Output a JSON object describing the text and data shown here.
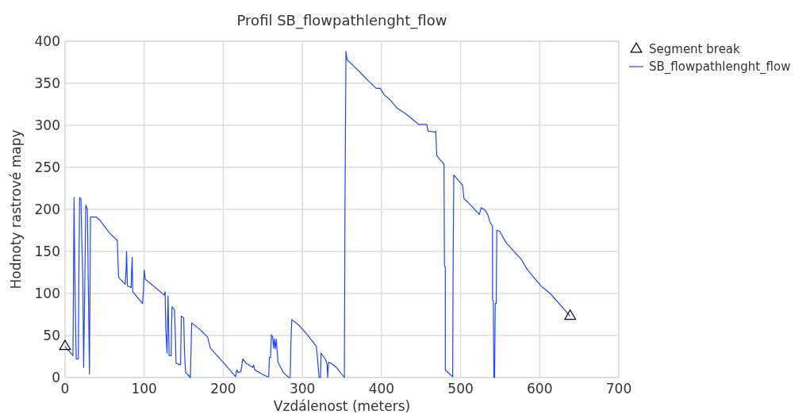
{
  "chart_data": {
    "type": "line",
    "title": "Profil SB_flowpathlenght_flow",
    "xlabel": "Vzdálenost (meters)",
    "ylabel": "Hodnoty rastrové mapy",
    "xlim": [
      0,
      700
    ],
    "xticks": [
      0,
      100,
      200,
      300,
      400,
      500,
      600,
      700
    ],
    "ylim": [
      0,
      400
    ],
    "yticks": [
      0,
      50,
      100,
      150,
      200,
      250,
      300,
      350,
      400
    ],
    "grid": true,
    "legend": "top right",
    "series": [
      {
        "name": "Segment break",
        "type": "scatter",
        "marker": "triangle",
        "color": "#000000",
        "x": [
          0,
          638.5
        ],
        "values": [
          37,
          73
        ]
      },
      {
        "name": "SB_flowpathlenght_flow",
        "marker": "none",
        "line_style": "solid",
        "color": "#1f45fc",
        "x": [
          0,
          10,
          10.7,
          11.4,
          12.4,
          14.1,
          16.8,
          17.4,
          18.4,
          20.1,
          22.4,
          23.5,
          24.8,
          26.2,
          28.2,
          29.5,
          30.8,
          32.2,
          39.3,
          44.3,
          56,
          66.1,
          66.8,
          67.8,
          76.1,
          77.1,
          77.8,
          78.8,
          83.6,
          84,
          84.9,
          85.6,
          90,
          98,
          99.3,
          100,
          101.4,
          125.5,
          126.5,
          127.2,
          128.9,
          129.5,
          130.2,
          131.6,
          134.2,
          134.5,
          135.2,
          138.3,
          139.3,
          140.3,
          146,
          147,
          150,
          151,
          152.4,
          158.4,
          160.1,
          171.8,
          180.3,
          183.6,
          202,
          215.5,
          217.1,
          218.8,
          222.2,
          224.6,
          228.9,
          237.3,
          238.3,
          239.7,
          245.7,
          249,
          255.8,
          257.4,
          258.4,
          259.8,
          260.8,
          262.5,
          263.5,
          264.5,
          265.8,
          266.9,
          267.9,
          269.2,
          275.9,
          282.6,
          284.6,
          285.3,
          286.6,
          296,
          306.1,
          317.8,
          319.5,
          321.2,
          322.9,
          323.6,
          329.6,
          331.3,
          332,
          333,
          336.3,
          343,
          353.1,
          353.8,
          355.1,
          356.5,
          359.8,
          366.6,
          373.2,
          383.3,
          393.4,
          398.4,
          403.5,
          410.2,
          420.2,
          430.3,
          437,
          447.1,
          457.2,
          458.8,
          467.3,
          468.6,
          469.9,
          474,
          479,
          479.6,
          480.7,
          480.7,
          490,
          490.5,
          491.4,
          497.5,
          502.5,
          504.2,
          510.9,
          523.6,
          526,
          531,
          534.4,
          537,
          540.4,
          540.4,
          541.4,
          542.1,
          543,
          543.8,
          545.1,
          545.8,
          549.5,
          552.9,
          557.9,
          576.3,
          584.7,
          601.5,
          613.3,
          638.5
        ],
        "values": [
          37,
          26,
          119,
          214,
          119,
          22,
          22,
          115,
          214,
          212,
          118,
          12,
          100,
          205,
          200,
          103,
          4,
          191,
          191,
          187,
          172,
          163,
          140,
          119,
          111,
          128,
          150,
          109,
          107,
          123,
          143,
          102,
          97,
          88,
          107,
          128,
          117,
          98,
          102,
          61,
          29,
          61,
          97,
          26,
          26,
          54,
          84,
          81,
          54,
          17,
          15,
          73,
          71,
          29,
          6,
          0,
          65,
          56,
          48,
          35,
          16,
          1,
          9,
          6,
          7,
          22,
          17,
          12,
          15,
          9,
          6,
          4,
          1,
          1,
          24,
          24,
          51,
          48,
          35,
          46,
          34,
          46,
          34,
          18,
          6,
          0,
          0,
          35,
          69,
          62,
          51,
          37,
          18,
          0,
          0,
          29,
          21,
          15,
          0,
          18,
          17,
          12,
          0,
          194,
          388,
          378,
          375,
          369,
          363,
          353,
          344,
          344,
          336,
          331,
          320,
          314,
          309,
          301,
          301,
          293,
          292,
          293,
          264,
          259,
          254,
          133,
          131,
          9,
          1,
          122,
          241,
          234,
          229,
          213,
          207,
          194,
          202,
          199,
          194,
          185,
          180,
          92,
          91,
          0,
          0,
          88,
          88,
          175,
          174,
          168,
          160,
          141,
          128,
          109,
          100,
          73
        ]
      }
    ]
  }
}
